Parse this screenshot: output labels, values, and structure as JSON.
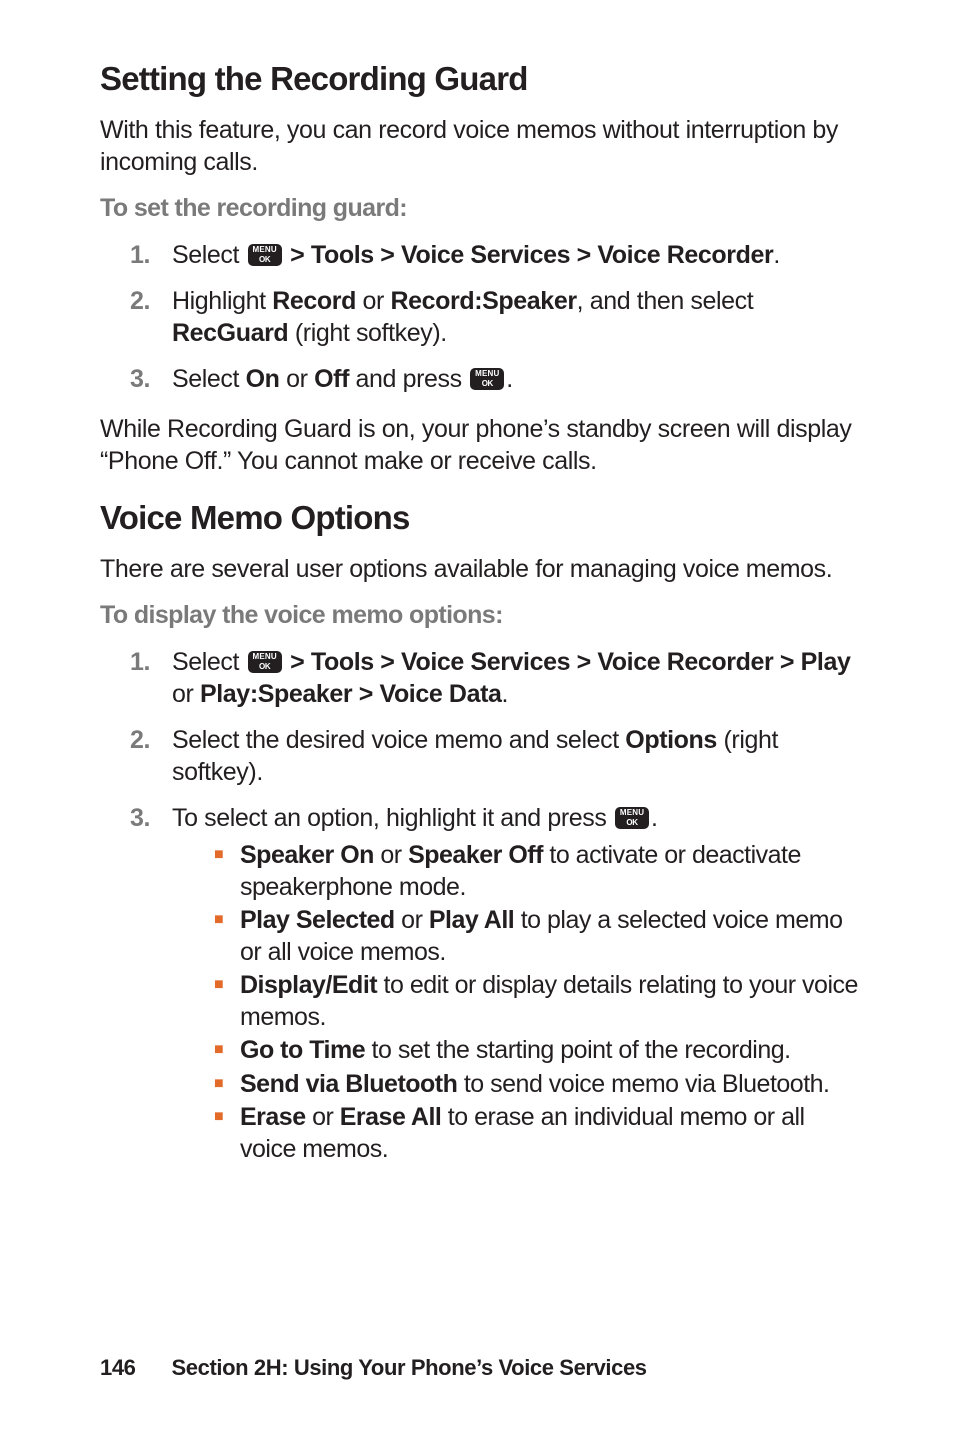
{
  "section1": {
    "heading": "Setting the Recording Guard",
    "intro": "With this feature, you can record voice memos without interruption by incoming calls.",
    "lead": "To set the recording guard:",
    "step1_pre": "Select ",
    "step1_post": " > Tools > Voice Services > Voice Recorder",
    "step1_end": ".",
    "step2_a": "Highlight ",
    "step2_b": "Record",
    "step2_c": " or ",
    "step2_d": "Record:Speaker",
    "step2_e": ", and then select ",
    "step2_f": "RecGuard",
    "step2_g": " (right softkey).",
    "step3_a": "Select ",
    "step3_b": "On",
    "step3_c": " or ",
    "step3_d": "Off",
    "step3_e": " and press ",
    "step3_f": ".",
    "outro": "While Recording Guard is on, your phone’s standby screen will display “Phone Off.”  You cannot make or receive calls."
  },
  "section2": {
    "heading": "Voice Memo Options",
    "intro": "There are several user options available for managing voice memos.",
    "lead": "To display the voice memo options:",
    "step1_pre": "Select ",
    "step1_mid": " > Tools > Voice Services > Voice Recorder > Play",
    "step1_or": " or ",
    "step1_b2": "Play:Speaker > Voice Data",
    "step1_end": ".",
    "step2_a": "Select the desired voice memo and select ",
    "step2_b": "Options",
    "step2_c": " (right softkey).",
    "step3_a": "To select an option, highlight it and press ",
    "step3_b": ".",
    "sub1_a": "Speaker On",
    "sub1_b": " or ",
    "sub1_c": "Speaker Off",
    "sub1_d": " to activate or deactivate speakerphone mode.",
    "sub2_a": "Play Selected",
    "sub2_b": " or ",
    "sub2_c": "Play All",
    "sub2_d": " to play a selected voice memo or all voice memos.",
    "sub3_a": "Display/Edit",
    "sub3_b": " to edit or display details relating to your voice memos.",
    "sub4_a": "Go to Time",
    "sub4_b": " to set the starting point of the recording.",
    "sub5_a": "Send via Bluetooth",
    "sub5_b": "  to send voice memo via Bluetooth.",
    "sub6_a": "Erase",
    "sub6_b": " or ",
    "sub6_c": "Erase All",
    "sub6_d": " to erase an individual memo or all voice memos."
  },
  "footer": {
    "page": "146",
    "title": "Section 2H: Using Your Phone’s Voice Services"
  },
  "nums": {
    "one": "1.",
    "two": "2.",
    "three": "3."
  }
}
